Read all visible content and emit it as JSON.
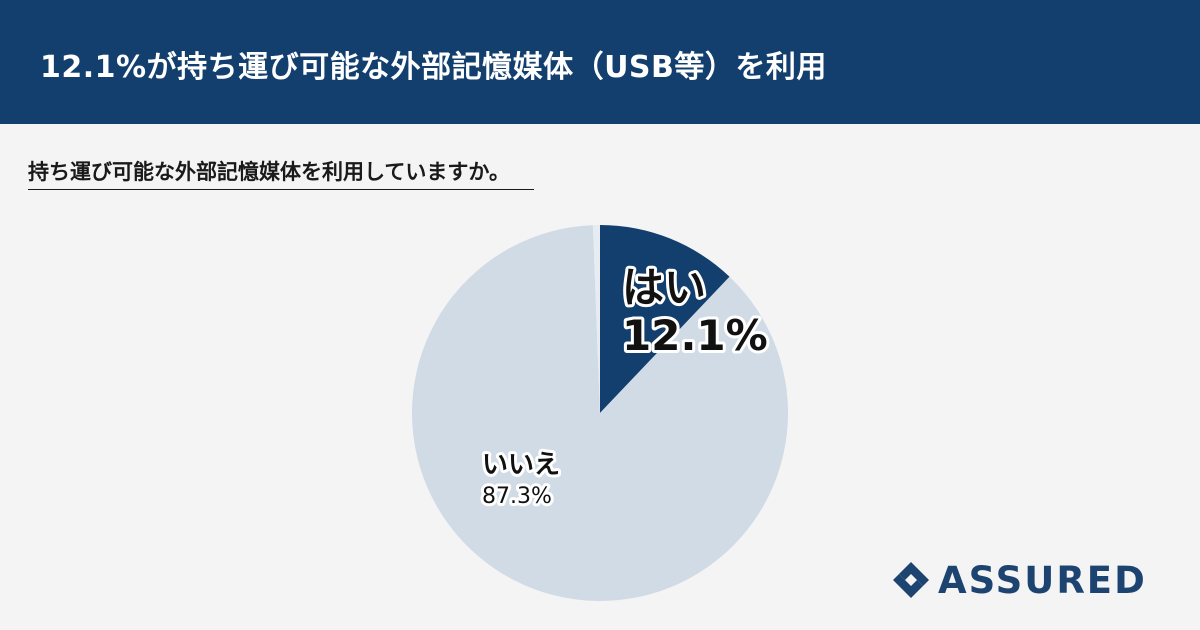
{
  "header": {
    "title": "12.1%が持ち運び可能な外部記憶媒体（USB等）を利用"
  },
  "question": "持ち運び可能な外部記憶媒体を利用していますか。",
  "brand": {
    "name": "ASSURED",
    "color": "#1d4470"
  },
  "colors": {
    "header_bg": "#133f6e",
    "yes": "#133f6e",
    "no": "#d1dbe6",
    "page_bg": "#f4f4f4"
  },
  "chart_data": {
    "type": "pie",
    "slices": [
      {
        "label": "はい",
        "value": 12.1,
        "value_label": "12.1%",
        "color": "#133f6e"
      },
      {
        "label": "いいえ",
        "value": 87.3,
        "value_label": "87.3%",
        "color": "#d1dbe6"
      },
      {
        "label": "",
        "value": 0.6,
        "value_label": "",
        "color": "#e6ecf2"
      }
    ],
    "start_angle_deg": 0,
    "direction": "clockwise"
  }
}
